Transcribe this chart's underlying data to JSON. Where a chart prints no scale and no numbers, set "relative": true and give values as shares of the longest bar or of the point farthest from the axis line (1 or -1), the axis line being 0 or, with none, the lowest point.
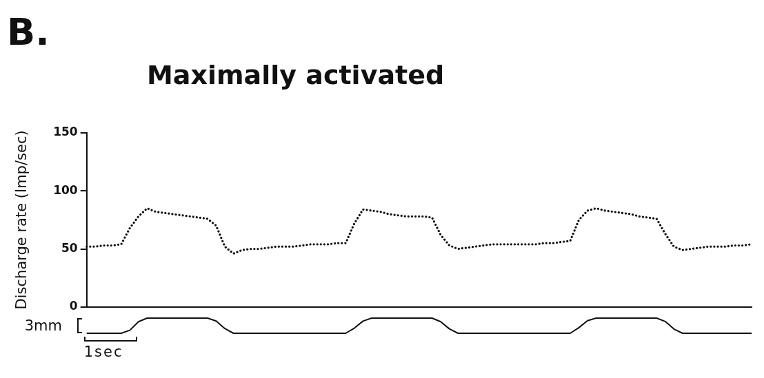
{
  "chart_data": [
    {
      "type": "line",
      "title": "Maximally activated",
      "ylabel": "Discharge rate (Imp/sec)",
      "annotations": [
        "B."
      ],
      "ylim": [
        0,
        150
      ],
      "yticks": [
        0,
        50,
        100,
        150
      ],
      "tick_labels": "y",
      "grid": false,
      "legend": false,
      "line_style": "dotted",
      "categories": [
        null,
        null,
        null,
        null,
        null,
        null,
        null,
        null,
        null,
        null,
        null,
        null,
        null,
        null,
        null,
        null,
        null,
        null,
        null,
        null,
        null,
        null,
        null,
        null,
        null,
        null,
        null,
        null,
        null,
        null,
        null,
        null,
        null,
        null,
        null,
        null,
        null,
        null,
        null,
        null,
        null,
        null,
        null,
        null,
        null,
        null,
        null,
        null,
        null,
        null,
        null,
        null,
        null,
        null,
        null,
        null,
        null,
        null,
        null,
        null,
        null,
        null,
        null,
        null,
        null,
        null,
        null,
        null,
        null,
        null,
        null,
        null,
        null,
        null,
        null,
        null,
        null,
        null
      ],
      "series": [
        {
          "color": "#111111",
          "values": [
            52,
            52,
            53,
            53,
            54,
            68,
            78,
            85,
            82,
            81,
            80,
            79,
            78,
            77,
            76,
            70,
            52,
            46,
            49,
            50,
            50,
            51,
            52,
            52,
            52,
            53,
            54,
            54,
            54,
            55,
            55,
            72,
            84,
            83,
            82,
            80,
            79,
            78,
            78,
            78,
            77,
            62,
            53,
            50,
            51,
            52,
            53,
            54,
            54,
            54,
            54,
            54,
            54,
            55,
            55,
            56,
            57,
            75,
            83,
            85,
            83,
            82,
            81,
            80,
            78,
            77,
            76,
            63,
            52,
            49,
            50,
            51,
            52,
            52,
            52,
            53,
            53,
            54
          ]
        }
      ]
    },
    {
      "type": "line",
      "relative": true,
      "annotations": [
        "3mm",
        "1sec"
      ],
      "tick_labels": false,
      "grid": false,
      "legend": false,
      "line_style": "solid",
      "categories": [
        null,
        null,
        null,
        null,
        null,
        null,
        null,
        null,
        null,
        null,
        null,
        null,
        null,
        null,
        null,
        null,
        null,
        null,
        null,
        null,
        null,
        null,
        null,
        null,
        null,
        null,
        null,
        null,
        null,
        null,
        null,
        null,
        null,
        null,
        null,
        null,
        null,
        null,
        null,
        null,
        null,
        null,
        null,
        null,
        null,
        null,
        null,
        null,
        null,
        null,
        null,
        null,
        null,
        null,
        null,
        null,
        null,
        null,
        null,
        null,
        null,
        null,
        null,
        null,
        null,
        null,
        null,
        null,
        null,
        null,
        null,
        null,
        null,
        null,
        null,
        null,
        null,
        null
      ],
      "series": [
        {
          "color": "#111111",
          "values": [
            0,
            0,
            0,
            0,
            0,
            0.2,
            0.76,
            1,
            1,
            1,
            1,
            1,
            1,
            1,
            1,
            0.81,
            0.31,
            0,
            0,
            0,
            0,
            0,
            0,
            0,
            0,
            0,
            0,
            0,
            0,
            0,
            0,
            0.34,
            0.8,
            1,
            1,
            1,
            1,
            1,
            1,
            1,
            1,
            0.76,
            0.29,
            0,
            0,
            0,
            0,
            0,
            0,
            0,
            0,
            0,
            0,
            0,
            0,
            0,
            0,
            0.37,
            0.83,
            1,
            1,
            1,
            1,
            1,
            1,
            1,
            1,
            0.78,
            0.28,
            0,
            0,
            0,
            0,
            0,
            0,
            0,
            0,
            0
          ]
        }
      ]
    }
  ]
}
